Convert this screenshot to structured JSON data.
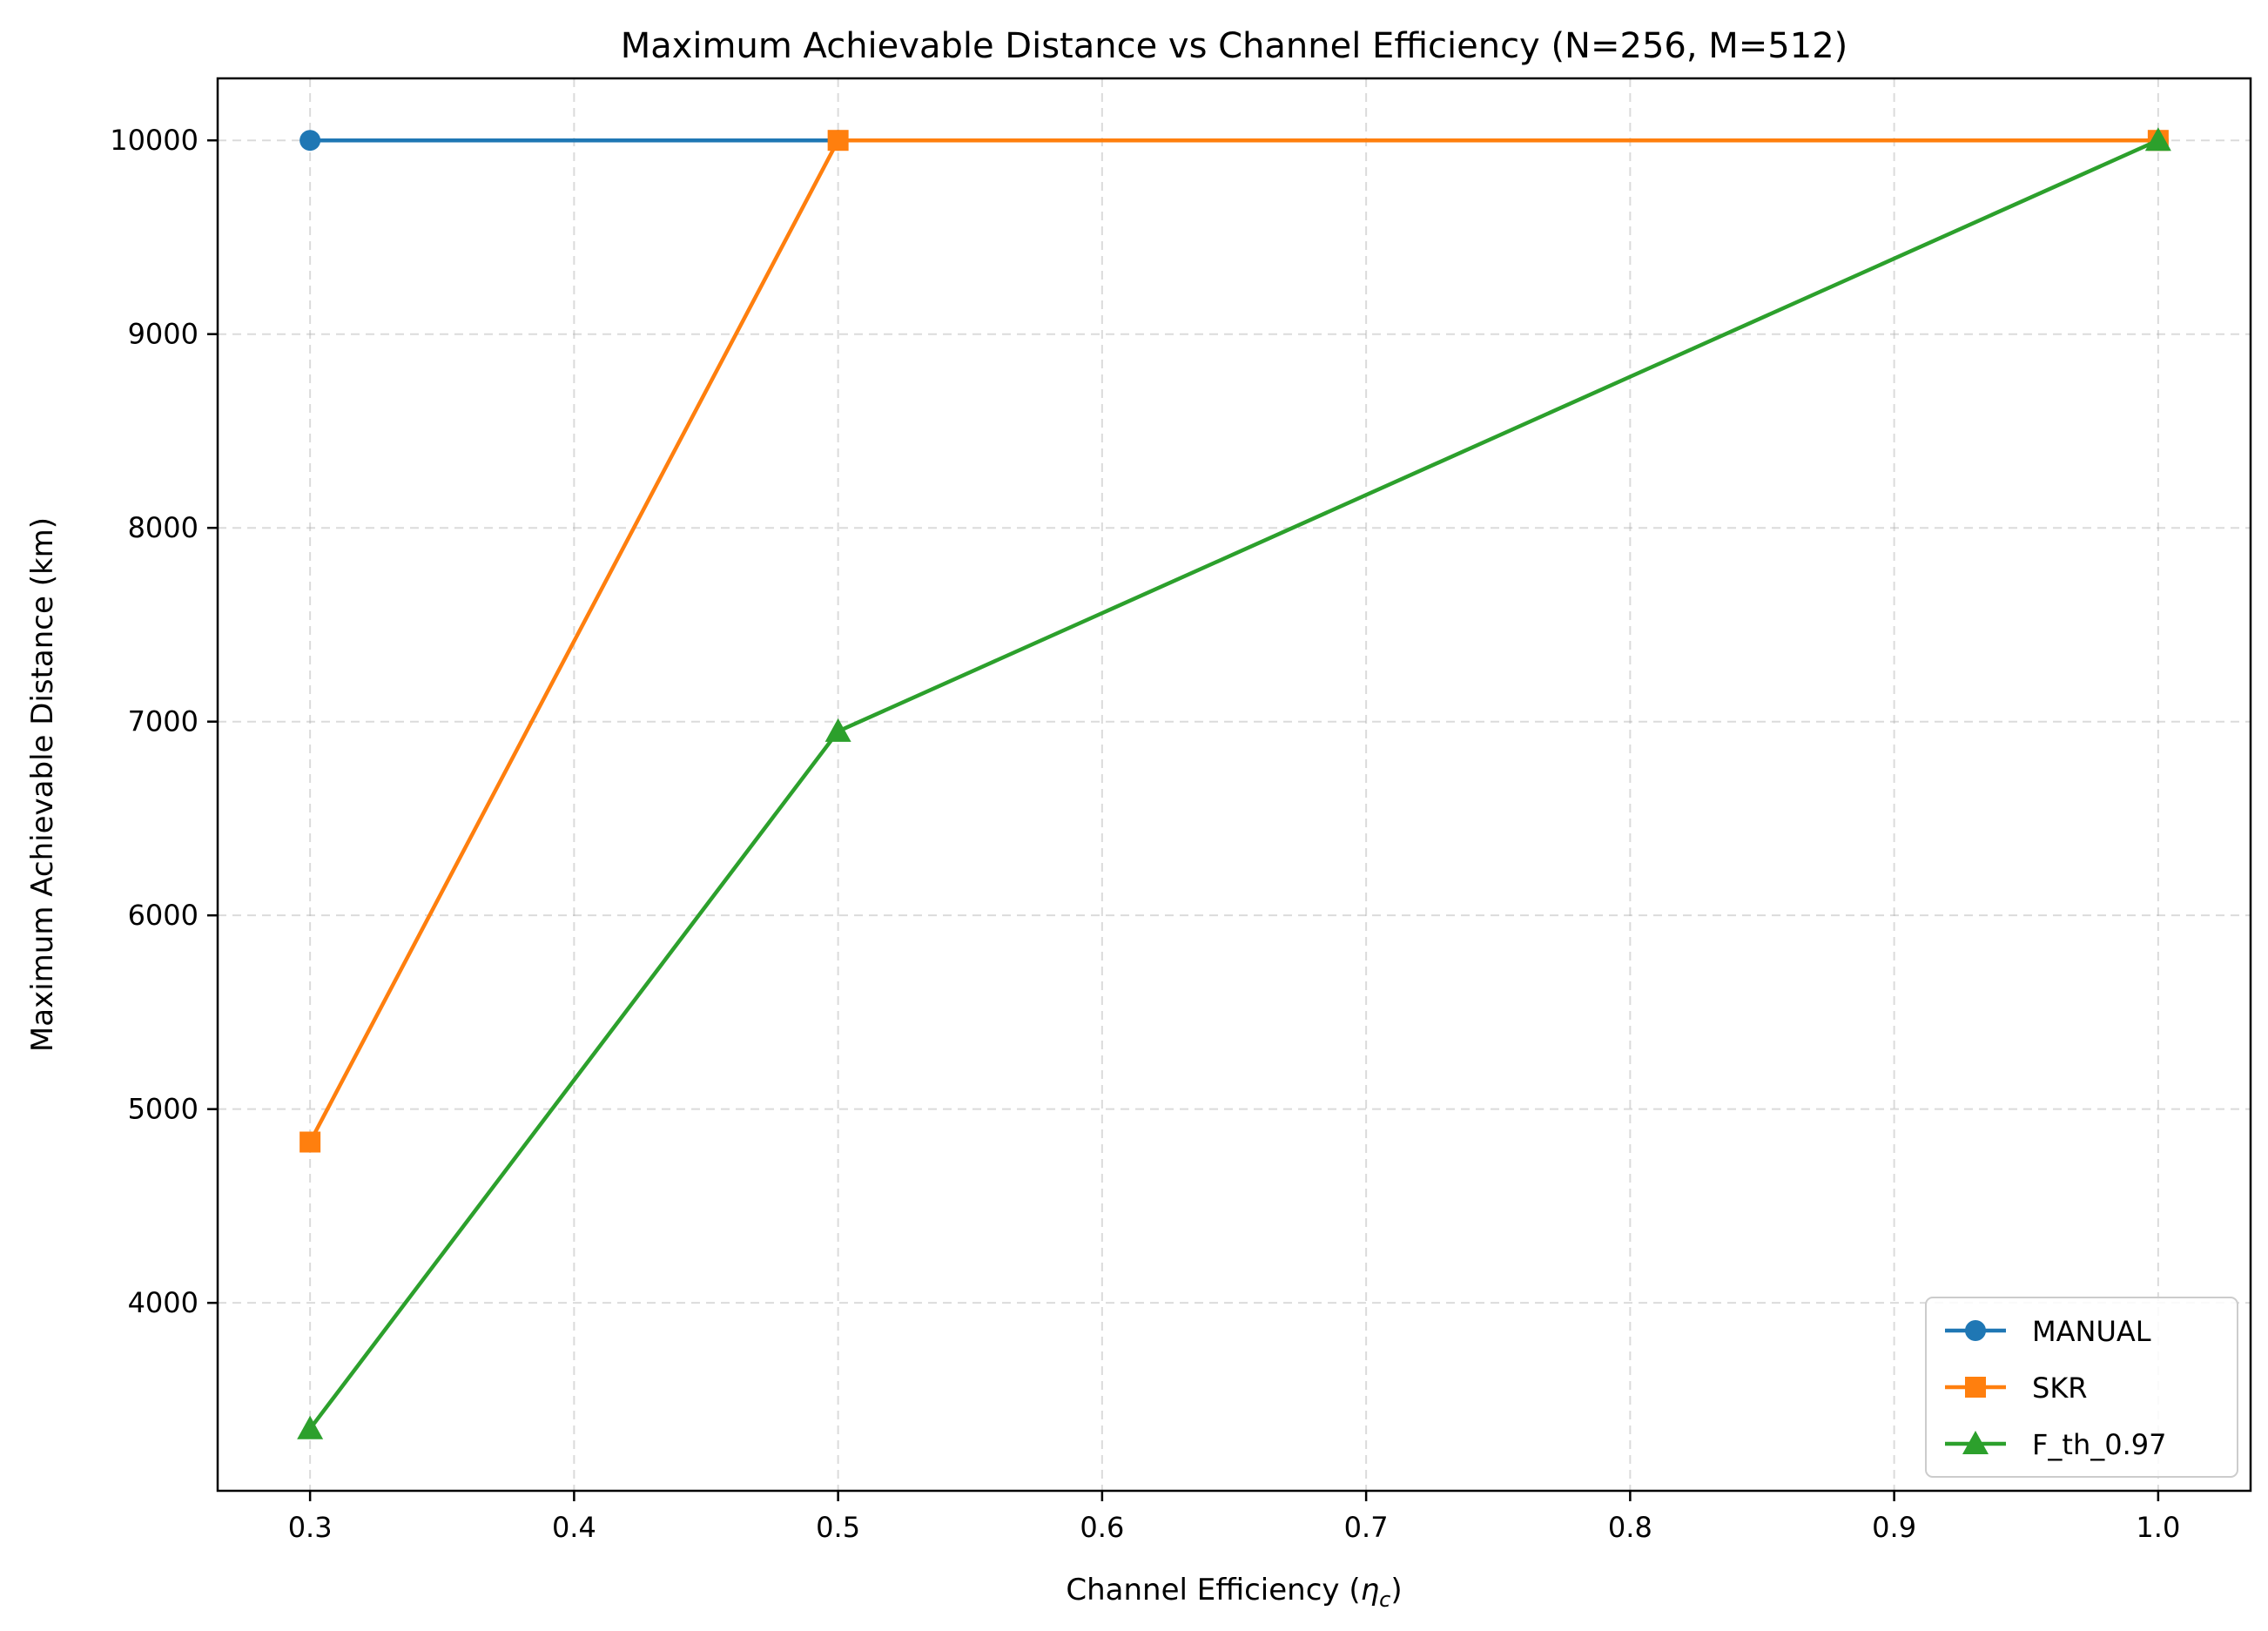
{
  "chart_data": {
    "type": "line",
    "title": "Maximum Achievable Distance vs Channel Efficiency (N=256, M=512)",
    "xlabel": "Channel Efficiency (",
    "xlabel_symbol": "η",
    "xlabel_subscript": "c",
    "xlabel_close": ")",
    "ylabel": "Maximum Achievable Distance (km)",
    "xlim": [
      0.265,
      1.035
    ],
    "ylim": [
      3030,
      10320
    ],
    "xticks": [
      0.3,
      0.4,
      0.5,
      0.6,
      0.7,
      0.8,
      0.9,
      1.0
    ],
    "xtick_labels": [
      "0.3",
      "0.4",
      "0.5",
      "0.6",
      "0.7",
      "0.8",
      "0.9",
      "1.0"
    ],
    "yticks": [
      4000,
      5000,
      6000,
      7000,
      8000,
      9000,
      10000
    ],
    "ytick_labels": [
      "4000",
      "5000",
      "6000",
      "7000",
      "8000",
      "9000",
      "10000"
    ],
    "grid": true,
    "legend_position": "lower-right",
    "x": [
      0.3,
      0.5,
      1.0
    ],
    "series": [
      {
        "name": "MANUAL",
        "color": "#1f77b4",
        "marker": "circle",
        "values": [
          10000,
          10000,
          10000
        ]
      },
      {
        "name": "SKR",
        "color": "#ff7f0e",
        "marker": "square",
        "values": [
          4830,
          10000,
          10000
        ]
      },
      {
        "name": "F_th_0.97",
        "color": "#2ca02c",
        "marker": "triangle",
        "values": [
          3350,
          6950,
          10000
        ]
      }
    ]
  }
}
